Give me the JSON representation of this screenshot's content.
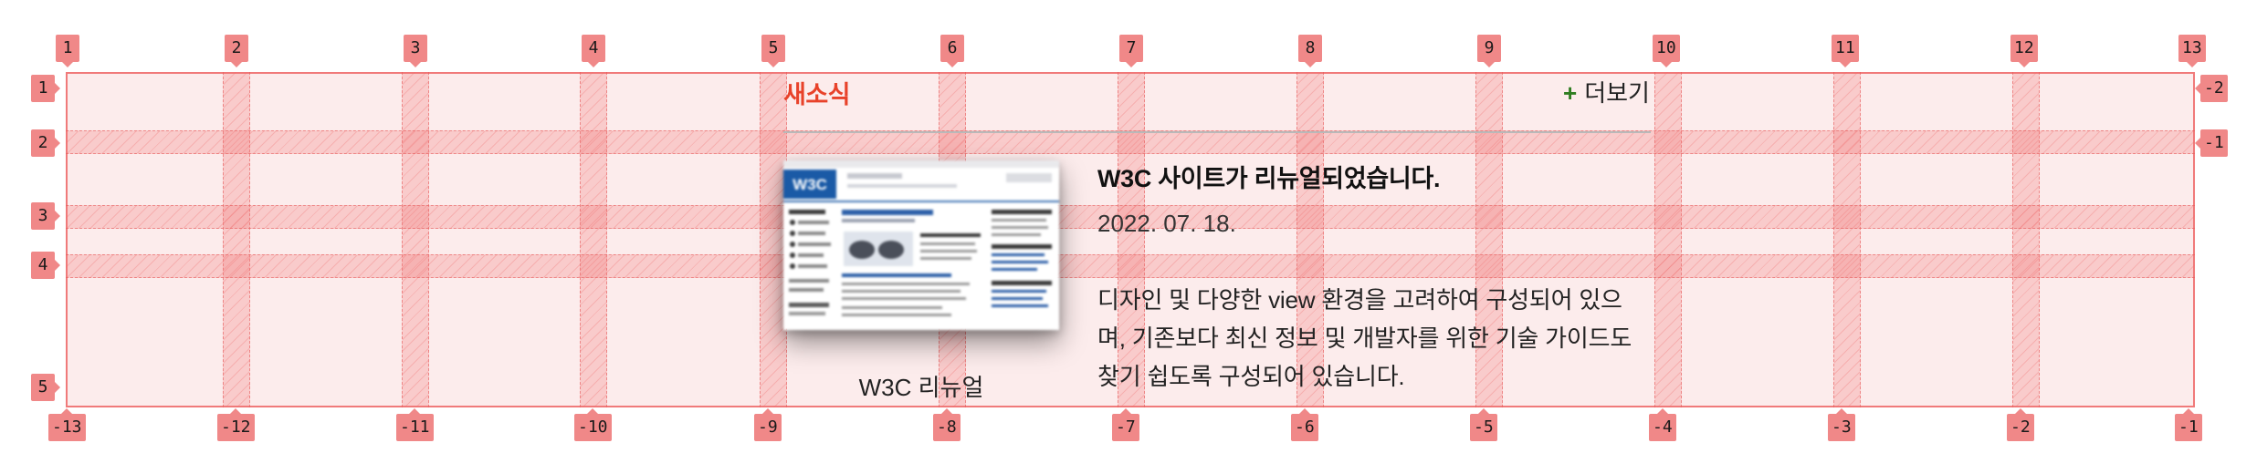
{
  "news": {
    "title": "새소식",
    "more_label": "더보기",
    "more_icon": "plus-icon",
    "accent_color": "#e8422a",
    "more_icon_color": "#2f7d21",
    "article": {
      "thumbnail_logo": "W3C",
      "thumbnail_caption": "W3C 리뉴얼",
      "heading": "W3C 사이트가 리뉴얼되었습니다.",
      "date": "2022. 07. 18.",
      "description_lines": [
        "디자인 및 다양한 view 환경을 고려하여 구성되어 있으",
        "며, 기존보다 최신 정보 및 개발자를 위한 기술 가이드도",
        "찾기 쉽도록 구성되어 있습니다."
      ]
    }
  },
  "grid_overlay": {
    "color": "#f08888",
    "column_labels_top": [
      "1",
      "2",
      "3",
      "4",
      "5",
      "6",
      "7",
      "8",
      "9",
      "10",
      "11",
      "12",
      "13"
    ],
    "column_labels_bottom": [
      "-13",
      "-12",
      "-11",
      "-10",
      "-9",
      "-8",
      "-7",
      "-6",
      "-5",
      "-4",
      "-3",
      "-2",
      "-1"
    ],
    "row_labels_left": [
      "1",
      "2",
      "3",
      "4",
      "5"
    ],
    "row_labels_right": [
      "-2",
      "-1"
    ]
  }
}
